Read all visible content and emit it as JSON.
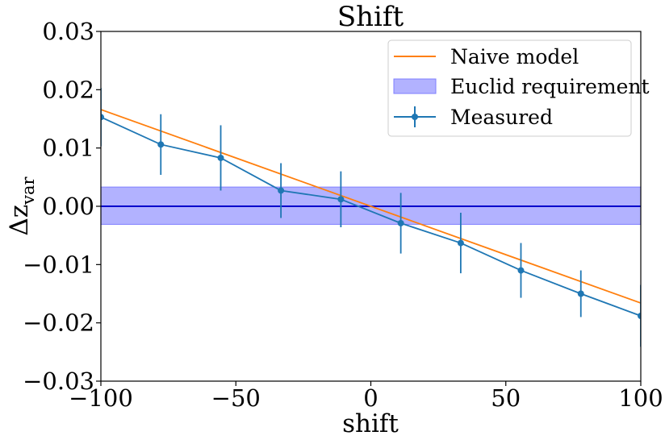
{
  "chart_data": {
    "type": "line",
    "title": "Shift",
    "xlabel": "shift",
    "ylabel_base": "Δz",
    "ylabel_sub": "var",
    "xlim": [
      -100,
      100
    ],
    "ylim": [
      -0.03,
      0.03
    ],
    "xticks": [
      {
        "value": -100,
        "label": "−100"
      },
      {
        "value": -50,
        "label": "−50"
      },
      {
        "value": 0,
        "label": "0"
      },
      {
        "value": 50,
        "label": "50"
      },
      {
        "value": 100,
        "label": "100"
      }
    ],
    "yticks": [
      {
        "value": 0.03,
        "label": "0.03"
      },
      {
        "value": 0.02,
        "label": "0.02"
      },
      {
        "value": 0.01,
        "label": "0.01"
      },
      {
        "value": 0.0,
        "label": "0.00"
      },
      {
        "value": -0.01,
        "label": "−0.01"
      },
      {
        "value": -0.02,
        "label": "−0.02"
      },
      {
        "value": -0.03,
        "label": "−0.03"
      }
    ],
    "grid": false,
    "legend_position": "top-right",
    "series": [
      {
        "name": "Naive model",
        "kind": "line",
        "color": "#ff7f0e",
        "x": [
          -100,
          100
        ],
        "y": [
          0.0166,
          -0.0166
        ]
      },
      {
        "name": "Measured",
        "kind": "errorbar",
        "color": "#1f77b4",
        "x": [
          -100,
          -77.8,
          -55.6,
          -33.3,
          -11.1,
          11.1,
          33.3,
          55.6,
          77.8,
          100
        ],
        "y": [
          0.0153,
          0.0106,
          0.0083,
          0.0027,
          0.0012,
          -0.0029,
          -0.0063,
          -0.011,
          -0.015,
          -0.0188
        ],
        "yerr": [
          0.005,
          0.0052,
          0.0056,
          0.0047,
          0.0048,
          0.0052,
          0.0052,
          0.0047,
          0.004,
          0.0053
        ]
      }
    ],
    "band": {
      "name": "Euclid requirement",
      "y_min": -0.0031,
      "y_max": 0.0033,
      "fill": "#b2b2ff",
      "edge": "#7f7fff"
    },
    "hline": {
      "y": 0.0,
      "color": "#0000cc"
    }
  }
}
